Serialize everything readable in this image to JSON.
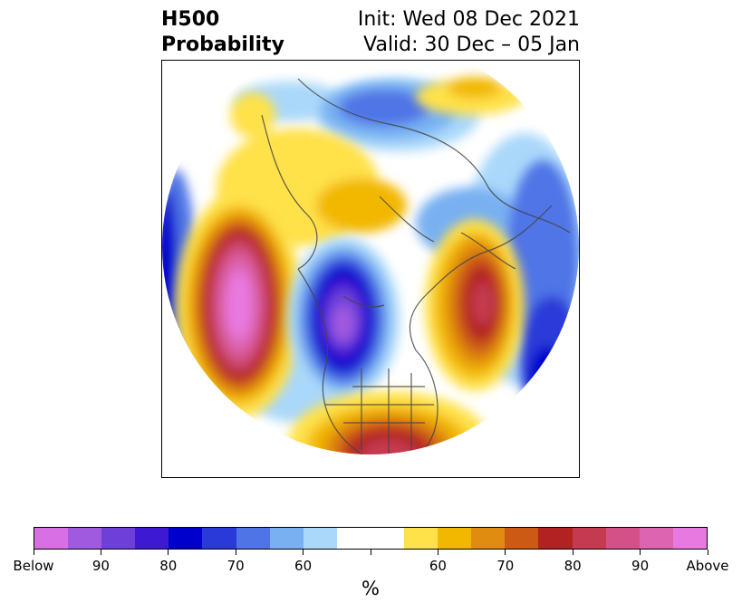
{
  "title": {
    "left_line1": "H500",
    "left_line2": "Probability",
    "right_line1": "Init: Wed 08 Dec 2021",
    "right_line2": "Valid: 30 Dec – 05 Jan"
  },
  "colorbar": {
    "colors": [
      "#d86fe3",
      "#a05ae0",
      "#6e3fd9",
      "#3d19d3",
      "#0000cc",
      "#2a3ad9",
      "#4f74e6",
      "#78b0f2",
      "#aad8fa",
      "#ffffff",
      "#ffffff",
      "#ffe14a",
      "#f2b800",
      "#e08c10",
      "#cc5a15",
      "#b32222",
      "#c43a50",
      "#d45187",
      "#dd64b0",
      "#e879e0"
    ],
    "tick_labels": [
      "Below",
      "90",
      "80",
      "70",
      "60",
      "",
      "60",
      "70",
      "80",
      "90",
      "Above"
    ],
    "unit_label": "%"
  },
  "map": {
    "projection": "north-polar-stereographic",
    "variable": "H500 probability",
    "below_color": "#0000cc",
    "above_color": "#b32222"
  }
}
